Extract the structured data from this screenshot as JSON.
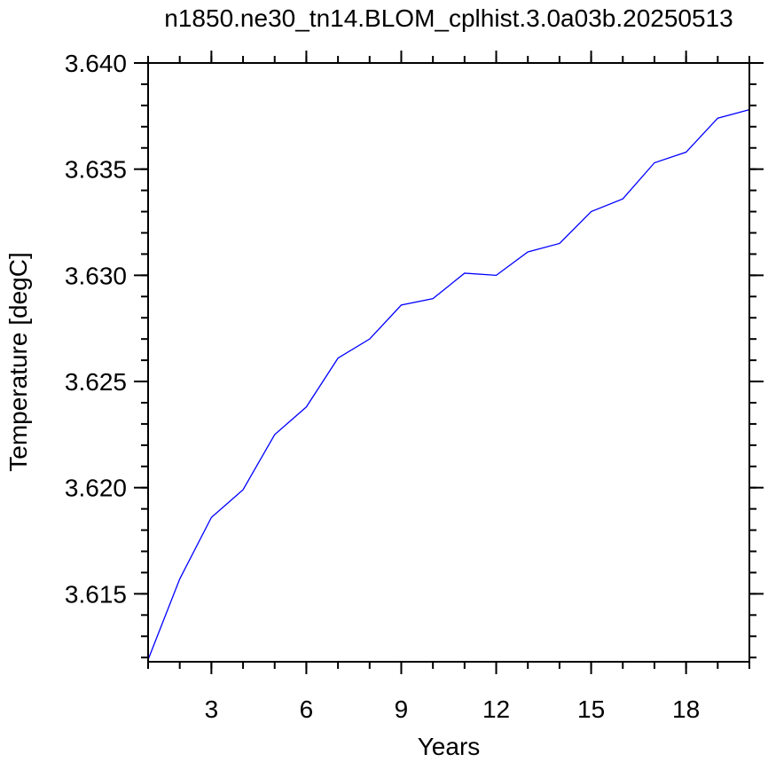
{
  "chart_data": {
    "type": "line",
    "title": "n1850.ne30_tn14.BLOM_cplhist.3.0a03b.20250513",
    "xlabel": "Years",
    "ylabel": "Temperature [degC]",
    "xlim": [
      1,
      20
    ],
    "ylim": [
      3.6118,
      3.64
    ],
    "x_ticks": [
      3,
      6,
      9,
      12,
      15,
      18
    ],
    "x_tick_labels": [
      "3",
      "6",
      "9",
      "12",
      "15",
      "18"
    ],
    "x_minor_ticks": [
      1,
      2,
      3,
      4,
      5,
      6,
      7,
      8,
      9,
      10,
      11,
      12,
      13,
      14,
      15,
      16,
      17,
      18,
      19,
      20
    ],
    "y_ticks": [
      3.615,
      3.62,
      3.625,
      3.63,
      3.635,
      3.64
    ],
    "y_tick_labels": [
      "3.615",
      "3.620",
      "3.625",
      "3.630",
      "3.635",
      "3.640"
    ],
    "y_minor_step": 0.001,
    "grid": false,
    "series": [
      {
        "color": "#0000ff",
        "x": [
          1,
          2,
          3,
          4,
          5,
          6,
          7,
          8,
          9,
          10,
          11,
          12,
          13,
          14,
          15,
          16,
          17,
          18,
          19,
          20
        ],
        "y": [
          3.6119,
          3.6157,
          3.6186,
          3.6199,
          3.6225,
          3.6238,
          3.6261,
          3.627,
          3.6286,
          3.6289,
          3.6301,
          3.63,
          3.6311,
          3.6315,
          3.633,
          3.6336,
          3.6353,
          3.6358,
          3.6374,
          3.6378
        ]
      }
    ]
  }
}
